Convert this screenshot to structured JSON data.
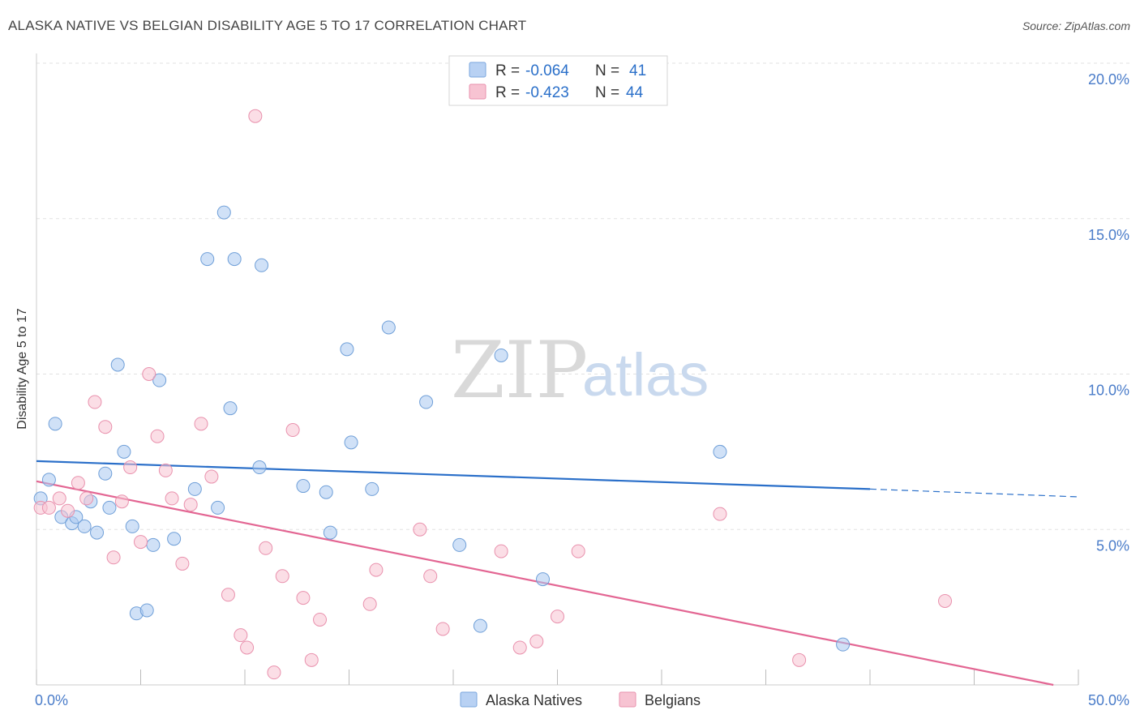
{
  "header": {
    "title": "ALASKA NATIVE VS BELGIAN DISABILITY AGE 5 TO 17 CORRELATION CHART",
    "source": "Source: ZipAtlas.com"
  },
  "watermark": {
    "zip": "ZIP",
    "atlas": "atlas"
  },
  "legend_top": {
    "rows": [
      {
        "r_label": "R =",
        "r_value": "-0.064",
        "n_label": "N =",
        "n_value": "41",
        "color": "#b8d1f3"
      },
      {
        "r_label": "R =",
        "r_value": "-0.423",
        "n_label": "N =",
        "n_value": "44",
        "color": "#f7c3d2"
      }
    ]
  },
  "chart_data": {
    "type": "scatter",
    "title": "ALASKA NATIVE VS BELGIAN DISABILITY AGE 5 TO 17 CORRELATION CHART",
    "xlabel": "",
    "ylabel": "Disability Age 5 to 17",
    "xlim": [
      0,
      50
    ],
    "ylim": [
      0,
      20
    ],
    "x_tick_labels": [
      "0.0%",
      "50.0%"
    ],
    "y_ticks": [
      5,
      10,
      15,
      20
    ],
    "y_tick_labels": [
      "5.0%",
      "10.0%",
      "15.0%",
      "20.0%"
    ],
    "grid": true,
    "legend_position": "bottom",
    "series": [
      {
        "name": "Alaska Natives",
        "color": "#a9c8f0",
        "stroke": "#6f9fd8",
        "line_color": "#2a6fc9",
        "trend": {
          "x": [
            0,
            40,
            50
          ],
          "y": [
            7.2,
            6.3,
            6.05
          ],
          "solid_until": 40
        },
        "points": [
          [
            0.2,
            6.0
          ],
          [
            0.6,
            6.6
          ],
          [
            0.9,
            8.4
          ],
          [
            1.2,
            5.4
          ],
          [
            1.7,
            5.2
          ],
          [
            1.9,
            5.4
          ],
          [
            2.3,
            5.1
          ],
          [
            2.6,
            5.9
          ],
          [
            2.9,
            4.9
          ],
          [
            3.3,
            6.8
          ],
          [
            3.5,
            5.7
          ],
          [
            3.9,
            10.3
          ],
          [
            4.2,
            7.5
          ],
          [
            4.6,
            5.1
          ],
          [
            4.8,
            2.3
          ],
          [
            5.3,
            2.4
          ],
          [
            5.6,
            4.5
          ],
          [
            5.9,
            9.8
          ],
          [
            6.6,
            4.7
          ],
          [
            7.6,
            6.3
          ],
          [
            8.2,
            13.7
          ],
          [
            8.7,
            5.7
          ],
          [
            9.3,
            8.9
          ],
          [
            9.5,
            13.7
          ],
          [
            10.8,
            13.5
          ],
          [
            9.0,
            15.2
          ],
          [
            10.7,
            7.0
          ],
          [
            12.8,
            6.4
          ],
          [
            13.9,
            6.2
          ],
          [
            14.1,
            4.9
          ],
          [
            14.9,
            10.8
          ],
          [
            15.1,
            7.8
          ],
          [
            16.1,
            6.3
          ],
          [
            16.9,
            11.5
          ],
          [
            18.7,
            9.1
          ],
          [
            20.3,
            4.5
          ],
          [
            21.3,
            1.9
          ],
          [
            22.3,
            10.6
          ],
          [
            24.3,
            3.4
          ],
          [
            32.8,
            7.5
          ],
          [
            38.7,
            1.3
          ]
        ]
      },
      {
        "name": "Belgians",
        "color": "#f7c3d2",
        "stroke": "#e991ad",
        "line_color": "#e36693",
        "trend": {
          "x": [
            0,
            48.8
          ],
          "y": [
            6.55,
            0
          ],
          "solid_until": 48.8
        },
        "points": [
          [
            0.2,
            5.7
          ],
          [
            0.6,
            5.7
          ],
          [
            1.1,
            6.0
          ],
          [
            1.5,
            5.6
          ],
          [
            2.0,
            6.5
          ],
          [
            2.4,
            6.0
          ],
          [
            2.8,
            9.1
          ],
          [
            3.3,
            8.3
          ],
          [
            3.7,
            4.1
          ],
          [
            4.1,
            5.9
          ],
          [
            4.5,
            7.0
          ],
          [
            5.0,
            4.6
          ],
          [
            5.4,
            10.0
          ],
          [
            5.8,
            8.0
          ],
          [
            6.2,
            6.9
          ],
          [
            6.5,
            6.0
          ],
          [
            7.0,
            3.9
          ],
          [
            7.4,
            5.8
          ],
          [
            7.9,
            8.4
          ],
          [
            8.4,
            6.7
          ],
          [
            9.2,
            2.9
          ],
          [
            9.8,
            1.6
          ],
          [
            10.1,
            1.2
          ],
          [
            10.5,
            18.3
          ],
          [
            11.0,
            4.4
          ],
          [
            11.4,
            0.4
          ],
          [
            11.8,
            3.5
          ],
          [
            12.3,
            8.2
          ],
          [
            12.8,
            2.8
          ],
          [
            13.2,
            0.8
          ],
          [
            13.6,
            2.1
          ],
          [
            16.3,
            3.7
          ],
          [
            16.0,
            2.6
          ],
          [
            18.4,
            5.0
          ],
          [
            18.9,
            3.5
          ],
          [
            19.5,
            1.8
          ],
          [
            22.3,
            4.3
          ],
          [
            23.2,
            1.2
          ],
          [
            24.0,
            1.4
          ],
          [
            25.0,
            2.2
          ],
          [
            26.0,
            4.3
          ],
          [
            32.8,
            5.5
          ],
          [
            36.6,
            0.8
          ],
          [
            43.6,
            2.7
          ]
        ]
      }
    ]
  }
}
